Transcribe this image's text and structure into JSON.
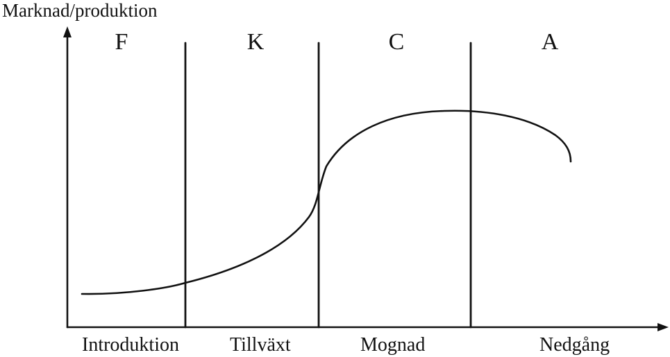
{
  "y_axis_label": "Marknad/produktion",
  "phases": [
    {
      "letter": "F",
      "stage": "Introduktion"
    },
    {
      "letter": "K",
      "stage": "Tillväxt"
    },
    {
      "letter": "C",
      "stage": "Mognad"
    },
    {
      "letter": "A",
      "stage": "Nedgång"
    }
  ],
  "colors": {
    "ink": "#111111",
    "background": "#ffffff"
  }
}
